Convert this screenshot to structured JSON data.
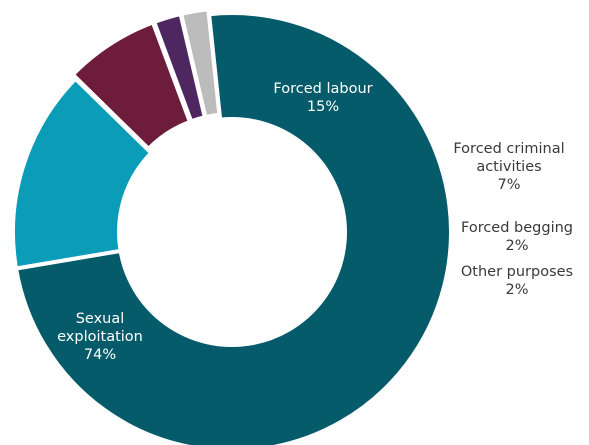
{
  "chart_data": {
    "type": "pie",
    "variant": "donut",
    "legend": "none",
    "slices": [
      {
        "name": "Sexual exploitation",
        "label_lines": [
          "Sexual",
          "exploitation"
        ],
        "value": 74,
        "value_label": "74%",
        "color": "#065b6a",
        "label_color": "#ffffff"
      },
      {
        "name": "Forced labour",
        "label_lines": [
          "Forced labour"
        ],
        "value": 15,
        "value_label": "15%",
        "color": "#0b9db8",
        "label_color": "#ffffff"
      },
      {
        "name": "Forced criminal activities",
        "label_lines": [
          "Forced criminal",
          "activities"
        ],
        "value": 7,
        "value_label": "7%",
        "color": "#6e1c3b",
        "label_color": "#3a3a3a"
      },
      {
        "name": "Forced begging",
        "label_lines": [
          "Forced begging"
        ],
        "value": 2,
        "value_label": "2%",
        "color": "#4f2760",
        "label_color": "#3a3a3a"
      },
      {
        "name": "Other purposes",
        "label_lines": [
          "Other purposes"
        ],
        "value": 2,
        "value_label": "2%",
        "color": "#bcbcbc",
        "label_color": "#3a3a3a"
      }
    ]
  }
}
